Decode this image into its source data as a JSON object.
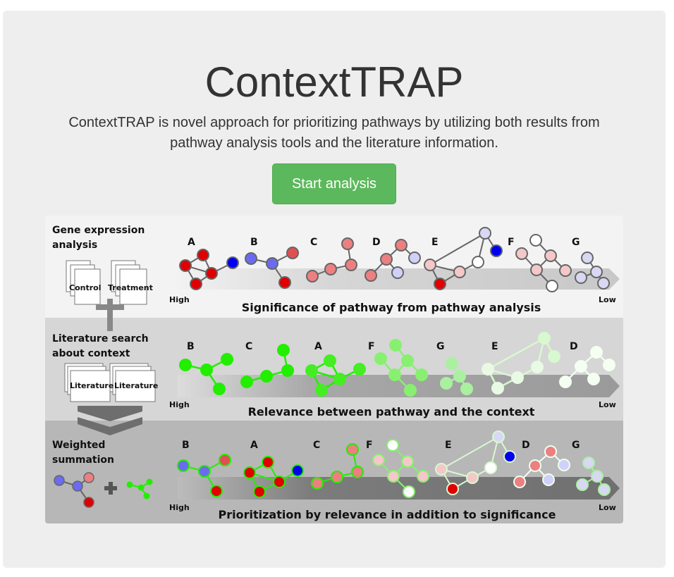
{
  "header": {
    "title": "ContextTRAP",
    "lead": "ContextTRAP is novel approach for prioritizing pathways by utilizing both results from pathway analysis tools and the literature information.",
    "button_label": "Start analysis"
  },
  "figure": {
    "rows": [
      {
        "left_title_lines": [
          "Gene expression",
          "analysis"
        ],
        "doc_labels": [
          "Control",
          "Treatment"
        ],
        "caption": "Significance of pathway from pathway analysis",
        "high_label": "High",
        "low_label": "Low",
        "order": [
          "A",
          "B",
          "C",
          "D",
          "E",
          "F",
          "G"
        ],
        "colors": {
          "A": "#e00000",
          "B": "#6b6bf0",
          "C": "#ec8080",
          "D": "#ec8080",
          "E": "#f4c8c8",
          "F": "#f4c8c8",
          "G": "#d8d8f4"
        }
      },
      {
        "left_title_lines": [
          "Literature search",
          "about context"
        ],
        "doc_labels": [
          "Literature",
          "Literature"
        ],
        "caption": "Relevance between pathway and the context",
        "high_label": "High",
        "low_label": "Low",
        "order": [
          "B",
          "C",
          "A",
          "F",
          "G",
          "E",
          "D"
        ],
        "colors": {
          "B": "#22ee00",
          "C": "#22ee00",
          "A": "#44ee22",
          "F": "#88f070",
          "G": "#aaf0a0",
          "E": "#d8f8d0",
          "D": "#f0fff0"
        }
      },
      {
        "left_title_lines": [
          "Weighted",
          "summation"
        ],
        "caption": "Prioritization by relevance in addition to significance",
        "high_label": "High",
        "low_label": "Low",
        "order": [
          "B",
          "A",
          "C",
          "F",
          "E",
          "D",
          "G"
        ]
      }
    ]
  },
  "colors": {
    "button": "#5cb85c",
    "significance_high": "#e00000",
    "relevance_high": "#22ee00"
  }
}
